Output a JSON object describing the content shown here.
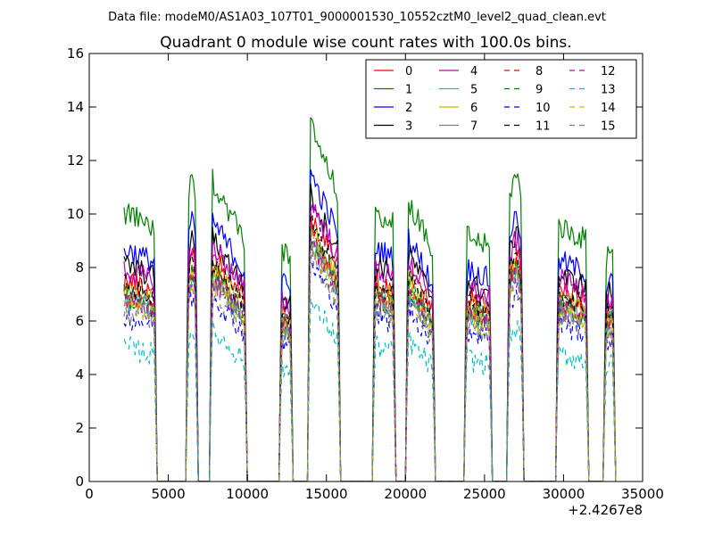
{
  "figure": {
    "suptitle": "Data file: modeM0/AS1A03_107T01_9000001530_10552cztM0_level2_quad_clean.evt"
  },
  "chart_data": {
    "type": "line",
    "title": "Quadrant 0 module wise count rates with 100.0s bins.",
    "xlabel": "",
    "ylabel": "",
    "x_offset_label": "+2.4267e8",
    "xlim": [
      0,
      35000
    ],
    "ylim": [
      0,
      16
    ],
    "x_ticks": [
      0,
      5000,
      10000,
      15000,
      20000,
      25000,
      30000,
      35000
    ],
    "y_ticks": [
      0,
      2,
      4,
      6,
      8,
      10,
      12,
      14,
      16
    ],
    "x_tick_labels": [
      "0",
      "5000",
      "10000",
      "15000",
      "20000",
      "25000",
      "30000",
      "35000"
    ],
    "y_tick_labels": [
      "0",
      "2",
      "4",
      "6",
      "8",
      "10",
      "12",
      "14",
      "16"
    ],
    "grid": false,
    "legend_position": "top-right",
    "legend_columns": 4,
    "segments": [
      {
        "start": 2200,
        "end": 4200
      },
      {
        "start": 6200,
        "end": 6800
      },
      {
        "start": 7700,
        "end": 9900
      },
      {
        "start": 12100,
        "end": 12800
      },
      {
        "start": 13900,
        "end": 15800
      },
      {
        "start": 18000,
        "end": 19300
      },
      {
        "start": 20100,
        "end": 21800
      },
      {
        "start": 23800,
        "end": 25400
      },
      {
        "start": 26500,
        "end": 27400
      },
      {
        "start": 29600,
        "end": 31500
      },
      {
        "start": 32600,
        "end": 33200
      }
    ],
    "series": [
      {
        "name": "0",
        "color": "#ff0000",
        "dashed": false,
        "level": 7.8
      },
      {
        "name": "1",
        "color": "#008000",
        "dashed": false,
        "level": 10.4
      },
      {
        "name": "2",
        "color": "#0000ff",
        "dashed": false,
        "level": 9.0
      },
      {
        "name": "3",
        "color": "#000000",
        "dashed": false,
        "level": 8.4
      },
      {
        "name": "4",
        "color": "#bf00bf",
        "dashed": false,
        "level": 8.2
      },
      {
        "name": "5",
        "color": "#00bfbf",
        "dashed": false,
        "level": 7.0
      },
      {
        "name": "6",
        "color": "#bfbf00",
        "dashed": false,
        "level": 7.4
      },
      {
        "name": "7",
        "color": "#808080",
        "dashed": false,
        "level": 7.1
      },
      {
        "name": "8",
        "color": "#ff0000",
        "dashed": true,
        "level": 7.3
      },
      {
        "name": "9",
        "color": "#008000",
        "dashed": true,
        "level": 7.2
      },
      {
        "name": "10",
        "color": "#0000ff",
        "dashed": true,
        "level": 6.4
      },
      {
        "name": "11",
        "color": "#000000",
        "dashed": true,
        "level": 7.6
      },
      {
        "name": "12",
        "color": "#bf00bf",
        "dashed": true,
        "level": 7.0
      },
      {
        "name": "13",
        "color": "#00bfbf",
        "dashed": true,
        "level": 5.2
      },
      {
        "name": "14",
        "color": "#bfbf00",
        "dashed": true,
        "level": 6.9
      },
      {
        "name": "15",
        "color": "#808080",
        "dashed": true,
        "level": 6.6
      }
    ]
  }
}
